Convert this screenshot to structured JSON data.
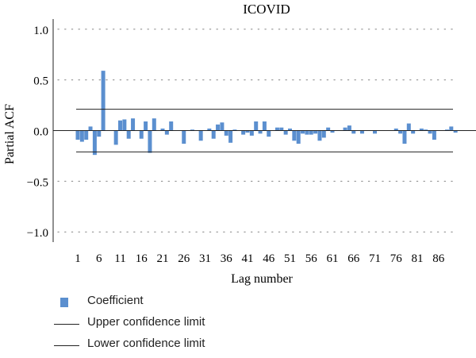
{
  "chart_data": {
    "type": "bar",
    "title": "ICOVID",
    "xlabel": "Lag number",
    "ylabel": "Partial ACF",
    "ylim": [
      -1.1,
      1.1
    ],
    "yticks": [
      "1.0",
      "0.5",
      "0.0",
      "−0.5",
      "−1.0"
    ],
    "ytick_values": [
      1.0,
      0.5,
      0.0,
      -0.5,
      -1.0
    ],
    "xticks": [
      "1",
      "6",
      "11",
      "16",
      "21",
      "26",
      "31",
      "36",
      "41",
      "46",
      "51",
      "56",
      "61",
      "66",
      "71",
      "76",
      "81",
      "86"
    ],
    "xtick_values": [
      1,
      6,
      11,
      16,
      21,
      26,
      31,
      36,
      41,
      46,
      51,
      56,
      61,
      66,
      71,
      76,
      81,
      86
    ],
    "x": [
      1,
      2,
      3,
      4,
      5,
      6,
      7,
      8,
      9,
      10,
      11,
      12,
      13,
      14,
      15,
      16,
      17,
      18,
      19,
      20,
      21,
      22,
      23,
      24,
      25,
      26,
      27,
      28,
      29,
      30,
      31,
      32,
      33,
      34,
      35,
      36,
      37,
      38,
      39,
      40,
      41,
      42,
      43,
      44,
      45,
      46,
      47,
      48,
      49,
      50,
      51,
      52,
      53,
      54,
      55,
      56,
      57,
      58,
      59,
      60,
      61,
      62,
      63,
      64,
      65,
      66,
      67,
      68,
      69,
      70,
      71,
      72,
      73,
      74,
      75,
      76,
      77,
      78,
      79,
      80,
      81,
      82,
      83,
      84,
      85,
      86,
      87,
      88,
      89,
      90
    ],
    "series": [
      {
        "name": "Coefficient",
        "values": [
          -0.09,
          -0.11,
          -0.09,
          0.04,
          -0.24,
          -0.06,
          0.59,
          0,
          0,
          -0.14,
          0.1,
          0.11,
          -0.08,
          0.12,
          0,
          -0.08,
          0.09,
          -0.22,
          0.12,
          0,
          0.02,
          -0.04,
          0.09,
          0,
          0,
          -0.13,
          0,
          0.01,
          0,
          -0.1,
          0,
          0.02,
          -0.08,
          0.06,
          0.08,
          -0.05,
          -0.12,
          0.01,
          0,
          -0.04,
          -0.02,
          -0.05,
          0.09,
          -0.03,
          0.09,
          -0.06,
          0,
          0.03,
          0.03,
          -0.04,
          0.02,
          -0.1,
          -0.13,
          -0.03,
          -0.04,
          -0.04,
          -0.03,
          -0.1,
          -0.07,
          0.03,
          -0.02,
          0,
          0,
          0.03,
          0.05,
          -0.03,
          0,
          -0.03,
          0,
          0,
          -0.03,
          0,
          0,
          0,
          0,
          0.02,
          -0.03,
          -0.13,
          0.07,
          -0.03,
          0,
          0.02,
          0.01,
          -0.03,
          -0.09,
          0,
          0,
          0.01,
          0.04,
          -0.02
        ]
      }
    ],
    "upper_confidence_limit": 0.21,
    "lower_confidence_limit": -0.21,
    "grid": "horizontal dotted",
    "legend_position": "bottom-left",
    "colors": {
      "bar": "#5b8fcf",
      "line": "#222222",
      "grid": "#9a9a9a"
    }
  },
  "legend": {
    "coefficient": "Coefficient",
    "upper": "Upper confidence limit",
    "lower": "Lower confidence limit"
  }
}
